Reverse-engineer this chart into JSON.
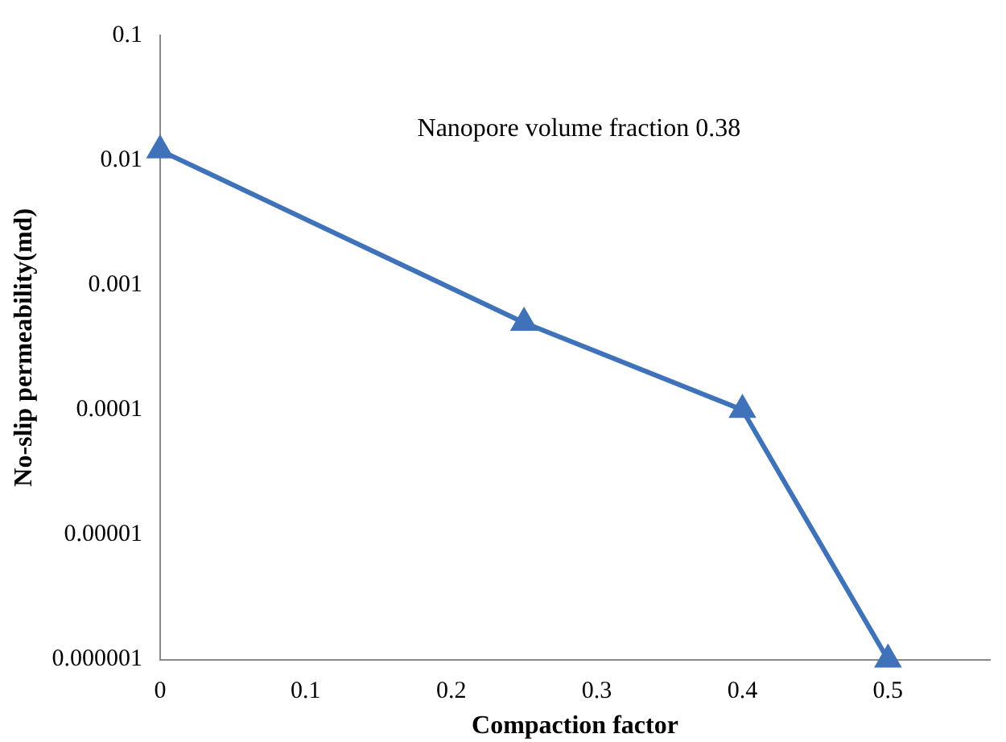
{
  "chart_data": {
    "type": "line",
    "xlabel": "Compaction factor",
    "ylabel": "No-slip permeability(md)",
    "annotations": [
      "Nanopore volume fraction 0.38"
    ],
    "x": [
      0,
      0.25,
      0.4,
      0.5
    ],
    "series": [
      {
        "color": "#3f72b8",
        "values": [
          0.012,
          0.0005,
          0.0001,
          1e-06
        ]
      }
    ],
    "xlim": [
      0,
      0.57
    ],
    "xticks": [
      0,
      0.1,
      0.2,
      0.3,
      0.4,
      0.5
    ],
    "ylim": [
      1e-06,
      0.1
    ],
    "yticks": [
      {
        "value": 1e-06,
        "label": "0.000001"
      },
      {
        "value": 1e-05,
        "label": "0.00001"
      },
      0.0001,
      0.001,
      0.01,
      0.1
    ],
    "log": "y",
    "grid": false,
    "legend": false,
    "marker": "triangle",
    "line_style": "solid"
  }
}
